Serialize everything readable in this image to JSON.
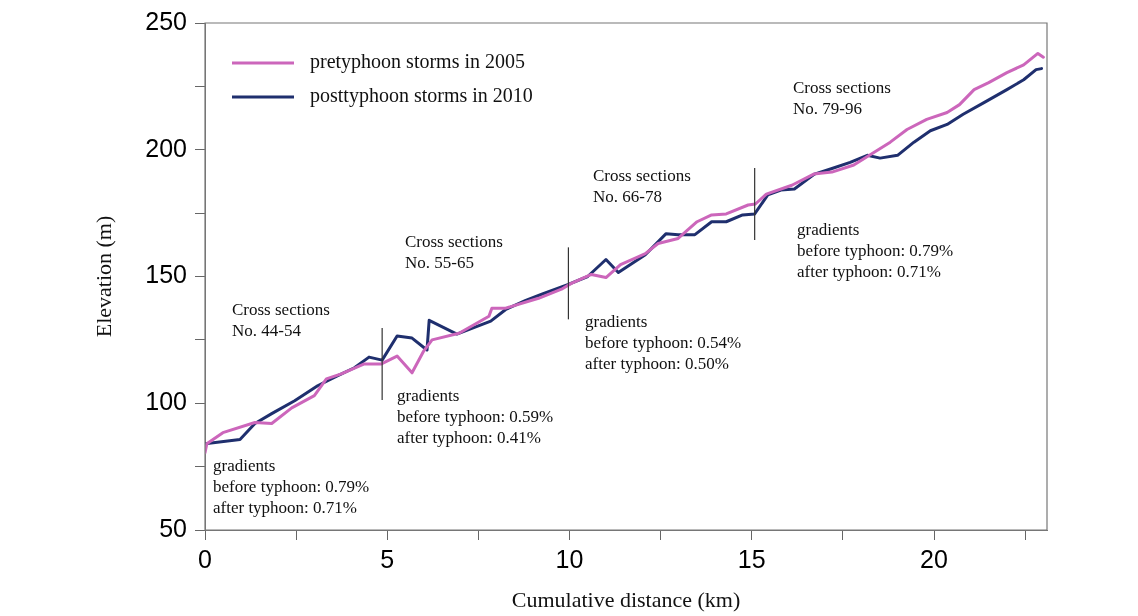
{
  "chart_data": {
    "type": "line",
    "xlabel": "Cumulative distance (km)",
    "ylabel": "Elevation (m)",
    "xlim": [
      0,
      23.1
    ],
    "xticks": [
      0,
      {
        "value": 2.5,
        "label": null
      },
      5,
      {
        "value": 7.5,
        "label": null
      },
      10,
      {
        "value": 12.5,
        "label": null
      },
      15,
      {
        "value": 17.5,
        "label": null
      },
      20,
      {
        "value": 22.5,
        "label": null
      }
    ],
    "ylim": [
      50,
      250
    ],
    "yticks": [
      50,
      {
        "value": 75,
        "label": null
      },
      100,
      {
        "value": 125,
        "label": null
      },
      150,
      {
        "value": 175,
        "label": null
      },
      200,
      {
        "value": 225,
        "label": null
      },
      250
    ],
    "grid": false,
    "legend": "top left",
    "marker": "none",
    "line_style": "solid",
    "series": [
      {
        "name": "pretyphoon storms in 2005",
        "color": "#cc66bb",
        "x": [
          0,
          0.05,
          0.49,
          1.37,
          1.83,
          2.38,
          3.0,
          3.33,
          3.74,
          4.37,
          4.84,
          5.27,
          5.68,
          6.0,
          6.23,
          6.97,
          7.79,
          7.87,
          8.25,
          9.15,
          9.78,
          10.05,
          10.6,
          11.0,
          11.4,
          12.08,
          12.43,
          12.98,
          13.5,
          13.9,
          14.3,
          14.9,
          15.1,
          15.4,
          16.1,
          16.7,
          17.2,
          17.8,
          18.25,
          18.8,
          19.26,
          19.8,
          20.36,
          20.7,
          21.1,
          21.5,
          22.0,
          22.46,
          22.85,
          23.0
        ],
        "values": [
          80.5,
          84,
          88.4,
          92.4,
          92,
          98.2,
          103,
          109.6,
          111.6,
          115.5,
          115.5,
          118.6,
          112,
          120.6,
          125,
          127.6,
          134.3,
          137.5,
          137.5,
          141.4,
          145,
          147.3,
          150.8,
          149.6,
          154.7,
          159,
          163,
          165,
          171.6,
          174.3,
          174.7,
          178.2,
          178.6,
          182.5,
          186,
          190.4,
          191.2,
          194,
          198,
          203,
          208,
          212,
          214.7,
          217.8,
          223.7,
          226.5,
          230.4,
          233.5,
          238,
          236.5
        ]
      },
      {
        "name": "posttyphoon storms in 2010",
        "color": "#1f2f6e",
        "x": [
          0,
          0.96,
          1.37,
          1.83,
          2.46,
          3.09,
          3.63,
          4.1,
          4.5,
          4.86,
          5.27,
          5.68,
          6.09,
          6.15,
          6.91,
          7.84,
          8.25,
          8.8,
          9.24,
          9.97,
          10.5,
          11.0,
          11.34,
          12.08,
          12.65,
          12.98,
          13.44,
          13.9,
          14.3,
          14.75,
          15.08,
          15.44,
          15.8,
          16.17,
          16.72,
          17.16,
          17.7,
          18.17,
          18.52,
          19.0,
          19.45,
          19.9,
          20.36,
          20.8,
          21.37,
          22.0,
          22.46,
          22.8,
          22.95
        ],
        "values": [
          84,
          85.7,
          92,
          95.9,
          101,
          106.9,
          110.8,
          114,
          118.2,
          117,
          126.5,
          125.7,
          121,
          132.7,
          127.3,
          132.4,
          137,
          140.6,
          143,
          146.9,
          150,
          156.7,
          151.6,
          158.6,
          166.9,
          166.5,
          166.5,
          171.6,
          171.6,
          174.3,
          174.7,
          182.2,
          184.1,
          184.5,
          190.4,
          192.4,
          195,
          197.8,
          196.7,
          197.8,
          203,
          207.5,
          210,
          214,
          218.6,
          223.7,
          227.6,
          231.6,
          232
        ]
      }
    ],
    "ref_lines": [
      {
        "axis": "x",
        "value": 4.86,
        "color": "#333333"
      },
      {
        "axis": "x",
        "value": 9.97,
        "color": "#333333"
      },
      {
        "axis": "x",
        "value": 15.08,
        "color": "#333333"
      }
    ],
    "annotations": [
      "Cross sections\nNo. 44-54",
      "Cross sections\nNo. 55-65",
      "Cross sections\nNo. 66-78",
      "Cross sections\nNo. 79-96",
      "gradients\nbefore typhoon: 0.79%\nafter typhoon: 0.71%",
      "gradients\nbefore typhoon: 0.59%\nafter typhoon: 0.41%",
      "gradients\nbefore typhoon: 0.54%\nafter typhoon: 0.50%",
      "gradients\nbefore typhoon: 0.79%\nafter typhoon: 0.71%"
    ]
  }
}
